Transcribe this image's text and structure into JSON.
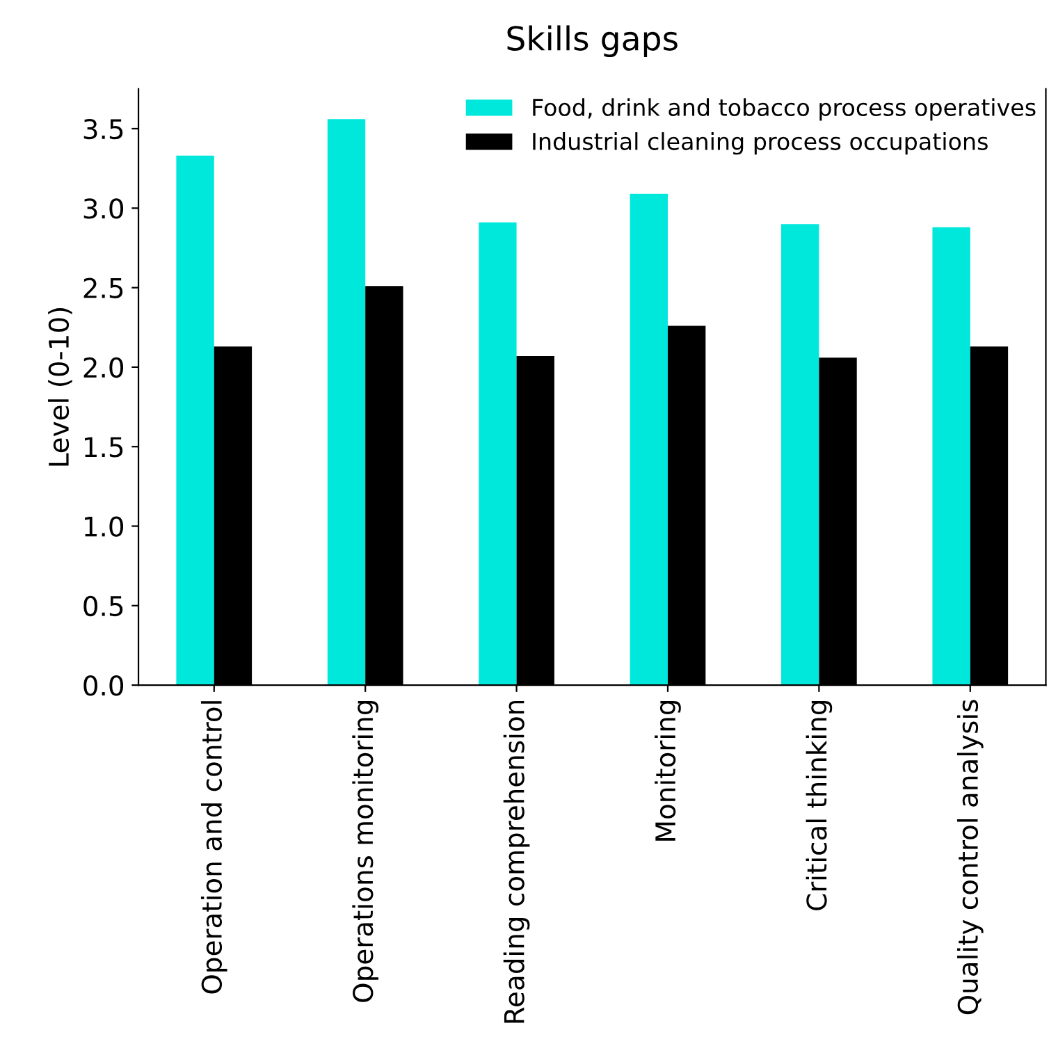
{
  "chart_data": {
    "type": "bar",
    "title": "Skills gaps",
    "ylabel": "Level (0-10)",
    "categories": [
      "Operation and control",
      "Operations monitoring",
      "Reading comprehension",
      "Monitoring",
      "Critical thinking",
      "Quality control analysis"
    ],
    "series": [
      {
        "name": "Food, drink and tobacco process operatives",
        "color": "#00e8dc",
        "values": [
          3.33,
          3.56,
          2.91,
          3.09,
          2.9,
          2.88
        ]
      },
      {
        "name": "Industrial cleaning process occupations",
        "color": "#000000",
        "values": [
          2.13,
          2.51,
          2.07,
          2.26,
          2.06,
          2.13
        ]
      }
    ],
    "ylim": [
      0,
      3.75
    ],
    "yticks": [
      {
        "value": 0,
        "label": "0.0"
      },
      0.5,
      {
        "value": 1,
        "label": "1.0"
      },
      1.5,
      {
        "value": 2,
        "label": "2.0"
      },
      2.5,
      {
        "value": 3,
        "label": "3.0"
      },
      3.5
    ],
    "grid": false,
    "legend": "top right"
  }
}
